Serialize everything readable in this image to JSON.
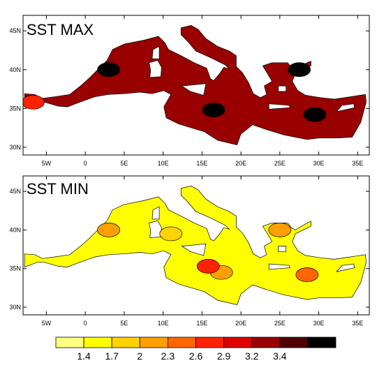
{
  "figure": {
    "panels": [
      {
        "id": "max",
        "title": "SST MAX"
      },
      {
        "id": "min",
        "title": "SST MIN"
      }
    ]
  },
  "chart_data": [
    {
      "type": "heatmap",
      "title": "SST MAX",
      "xlabel": "",
      "ylabel": "",
      "xlim": [
        -8,
        36.5
      ],
      "ylim": [
        29,
        47
      ],
      "x_ticks": [
        {
          "value": -5,
          "label": "5W"
        },
        {
          "value": 0,
          "label": "0"
        },
        {
          "value": 5,
          "label": "5E"
        },
        {
          "value": 10,
          "label": "10E"
        },
        {
          "value": 15,
          "label": "15E"
        },
        {
          "value": 20,
          "label": "20E"
        },
        {
          "value": 25,
          "label": "25E"
        },
        {
          "value": 30,
          "label": "30E"
        },
        {
          "value": 35,
          "label": "35E"
        }
      ],
      "y_ticks": [
        {
          "value": 30,
          "label": "30N"
        },
        {
          "value": 35,
          "label": "35N"
        },
        {
          "value": 40,
          "label": "40N"
        },
        {
          "value": 45,
          "label": "45N"
        }
      ],
      "field_level_index": 7,
      "highs": [
        {
          "lon": 3,
          "lat": 40,
          "level_index": 9
        },
        {
          "lon": 16.5,
          "lat": 34.8,
          "level_index": 9
        },
        {
          "lon": 29.5,
          "lat": 34.2,
          "level_index": 9
        },
        {
          "lon": 27.5,
          "lat": 40.0,
          "level_index": 9
        },
        {
          "lon": -6.7,
          "lat": 35.8,
          "level_index": 5
        }
      ]
    },
    {
      "type": "heatmap",
      "title": "SST MIN",
      "xlabel": "",
      "ylabel": "",
      "xlim": [
        -8,
        36.5
      ],
      "ylim": [
        29,
        47
      ],
      "x_ticks": [
        {
          "value": -5,
          "label": "5W"
        },
        {
          "value": 0,
          "label": "0"
        },
        {
          "value": 5,
          "label": "5E"
        },
        {
          "value": 10,
          "label": "10E"
        },
        {
          "value": 15,
          "label": "15E"
        },
        {
          "value": 20,
          "label": "20E"
        },
        {
          "value": 25,
          "label": "25E"
        },
        {
          "value": 30,
          "label": "30E"
        },
        {
          "value": 35,
          "label": "35E"
        }
      ],
      "y_ticks": [
        {
          "value": 30,
          "label": "30N"
        },
        {
          "value": 35,
          "label": "35N"
        },
        {
          "value": 40,
          "label": "40N"
        },
        {
          "value": 45,
          "label": "45N"
        }
      ],
      "field_level_index": 1,
      "highs": [
        {
          "lon": 3,
          "lat": 40,
          "level_index": 3
        },
        {
          "lon": 17.5,
          "lat": 34.5,
          "level_index": 3
        },
        {
          "lon": 15.8,
          "lat": 35.3,
          "level_index": 5
        },
        {
          "lon": 28.5,
          "lat": 34.2,
          "level_index": 4
        },
        {
          "lon": 11,
          "lat": 39.5,
          "level_index": 2
        },
        {
          "lon": 25,
          "lat": 40,
          "level_index": 3
        }
      ]
    }
  ],
  "colorbar": {
    "labels": [
      "1.4",
      "1.7",
      "2",
      "2.3",
      "2.6",
      "2.9",
      "3.2",
      "3.4"
    ],
    "colors": [
      "#ffff80",
      "#ffff00",
      "#ffd200",
      "#ffa000",
      "#ff6600",
      "#ff2200",
      "#dd0000",
      "#990000",
      "#500000",
      "#000000"
    ]
  }
}
